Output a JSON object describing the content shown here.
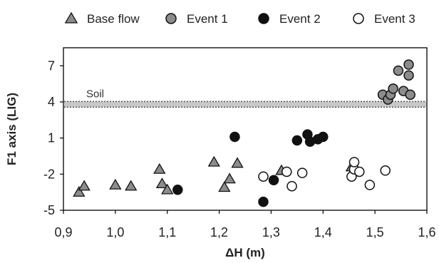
{
  "chart_data": {
    "type": "scatter",
    "xlabel": "ΔH (m)",
    "ylabel": "F1 axis (LIG)",
    "xlim": [
      0.9,
      1.6
    ],
    "ylim": [
      -5,
      8.5
    ],
    "xticks": [
      "0,9",
      "1,0",
      "1,1",
      "1,2",
      "1,3",
      "1,4",
      "1,5",
      "1,6"
    ],
    "xtick_values": [
      0.9,
      1.0,
      1.1,
      1.2,
      1.3,
      1.4,
      1.5,
      1.6
    ],
    "yticks": [
      "7",
      "4",
      "1",
      "-2",
      "-5"
    ],
    "ytick_values": [
      7,
      4,
      1,
      -2,
      -5
    ],
    "grid": false,
    "legend_position": "top",
    "annotation": {
      "text": "Soil",
      "y": 3.8
    },
    "series": [
      {
        "name": "Base flow",
        "marker": "triangle",
        "color": "#8c8c8c",
        "points": [
          [
            0.93,
            -3.5
          ],
          [
            0.94,
            -3.0
          ],
          [
            1.0,
            -2.9
          ],
          [
            1.03,
            -3.0
          ],
          [
            1.085,
            -1.6
          ],
          [
            1.09,
            -2.8
          ],
          [
            1.1,
            -3.3
          ],
          [
            1.19,
            -1.0
          ],
          [
            1.21,
            -3.1
          ],
          [
            1.22,
            -2.4
          ],
          [
            1.235,
            -1.1
          ],
          [
            1.32,
            -1.7
          ],
          [
            1.455,
            -1.4
          ]
        ]
      },
      {
        "name": "Event 1",
        "marker": "circle",
        "color": "#8c8c8c",
        "points": [
          [
            1.515,
            4.6
          ],
          [
            1.525,
            4.2
          ],
          [
            1.53,
            4.6
          ],
          [
            1.535,
            5.1
          ],
          [
            1.545,
            6.6
          ],
          [
            1.555,
            4.9
          ],
          [
            1.565,
            7.1
          ],
          [
            1.565,
            6.2
          ],
          [
            1.568,
            4.6
          ]
        ]
      },
      {
        "name": "Event 2",
        "marker": "circle",
        "color": "#111111",
        "points": [
          [
            1.12,
            -3.3
          ],
          [
            1.23,
            1.1
          ],
          [
            1.285,
            -4.3
          ],
          [
            1.305,
            -2.5
          ],
          [
            1.35,
            0.8
          ],
          [
            1.37,
            1.3
          ],
          [
            1.375,
            0.7
          ],
          [
            1.39,
            0.9
          ],
          [
            1.4,
            1.1
          ]
        ]
      },
      {
        "name": "Event 3",
        "marker": "circle",
        "color": "#ffffff",
        "points": [
          [
            1.285,
            -2.2
          ],
          [
            1.33,
            -1.8
          ],
          [
            1.34,
            -3.0
          ],
          [
            1.36,
            -1.9
          ],
          [
            1.455,
            -2.2
          ],
          [
            1.46,
            -1.6
          ],
          [
            1.46,
            -1.0
          ],
          [
            1.47,
            -1.8
          ],
          [
            1.49,
            -2.9
          ],
          [
            1.52,
            -1.7
          ]
        ]
      }
    ]
  }
}
